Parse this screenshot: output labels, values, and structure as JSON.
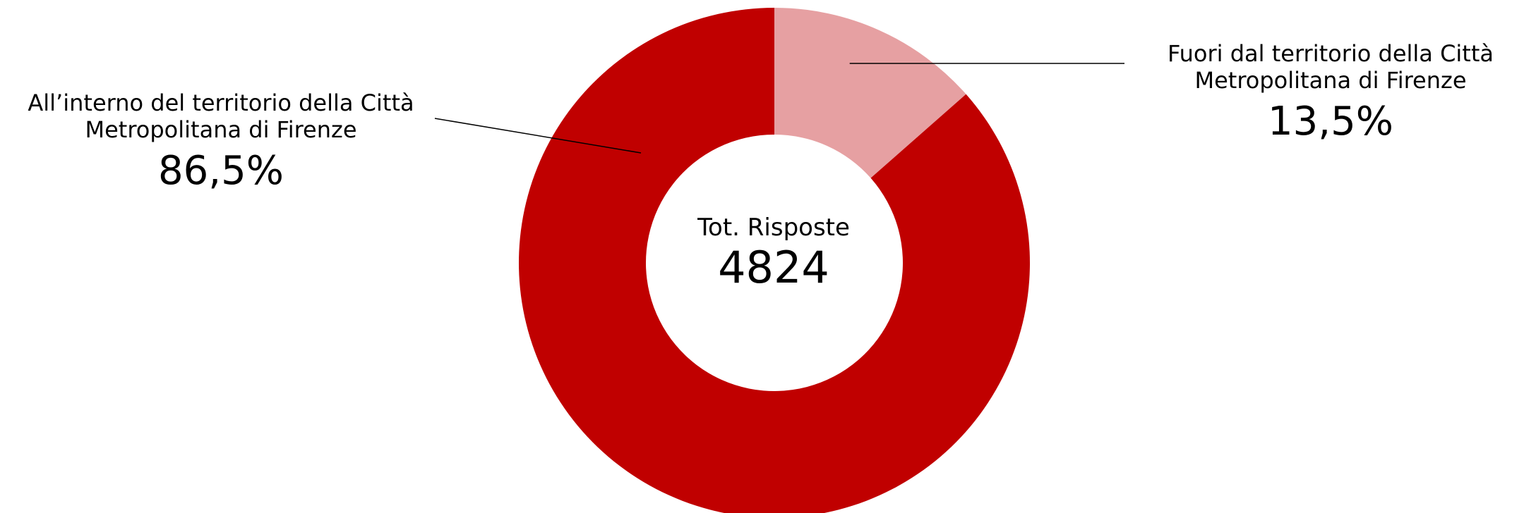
{
  "chart_data": {
    "type": "pie",
    "style": "donut",
    "center_label": "Tot. Risposte",
    "center_value": "4824",
    "slices": [
      {
        "label_line1": "Fuori dal territorio della Città",
        "label_line2": "Metropolitana di Firenze",
        "value": 13.5,
        "display": "13,5%",
        "color": "#E6A0A2"
      },
      {
        "label_line1": "All’interno del territorio della Città",
        "label_line2": "Metropolitana di Firenze",
        "value": 86.5,
        "display": "86,5%",
        "color": "#C00000"
      }
    ],
    "legend": "none",
    "grid": false
  }
}
